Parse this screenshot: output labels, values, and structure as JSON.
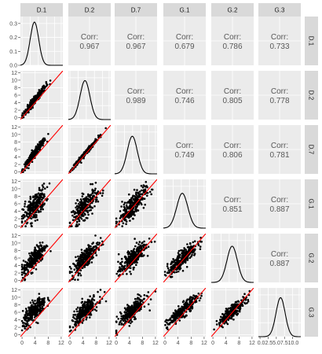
{
  "chart_data": {
    "type": "scatter-matrix",
    "variables": [
      "D.1",
      "D.2",
      "D.7",
      "G.1",
      "G.2",
      "G.3"
    ],
    "corr_label": "Corr:",
    "correlations": [
      {
        "row": "D.1",
        "col": "D.2",
        "value": "0.967"
      },
      {
        "row": "D.1",
        "col": "D.7",
        "value": "0.967"
      },
      {
        "row": "D.1",
        "col": "G.1",
        "value": "0.679"
      },
      {
        "row": "D.1",
        "col": "G.2",
        "value": "0.786"
      },
      {
        "row": "D.1",
        "col": "G.3",
        "value": "0.733"
      },
      {
        "row": "D.2",
        "col": "D.7",
        "value": "0.989"
      },
      {
        "row": "D.2",
        "col": "G.1",
        "value": "0.746"
      },
      {
        "row": "D.2",
        "col": "G.2",
        "value": "0.805"
      },
      {
        "row": "D.2",
        "col": "G.3",
        "value": "0.778"
      },
      {
        "row": "D.7",
        "col": "G.1",
        "value": "0.749"
      },
      {
        "row": "D.7",
        "col": "G.2",
        "value": "0.806"
      },
      {
        "row": "D.7",
        "col": "G.3",
        "value": "0.781"
      },
      {
        "row": "G.1",
        "col": "G.2",
        "value": "0.851"
      },
      {
        "row": "G.1",
        "col": "G.3",
        "value": "0.887"
      },
      {
        "row": "G.2",
        "col": "G.3",
        "value": "0.887"
      }
    ],
    "scatter_x_ticks": [
      "0",
      "4",
      "8",
      "12"
    ],
    "scatter_y_ticks": [
      "0",
      "2",
      "4",
      "6",
      "8",
      "10",
      "12"
    ],
    "scatter_range": [
      -0.5,
      12.5
    ],
    "last_col_x_ticks": [
      "0.02.55.07.510.0"
    ],
    "density_y_ticks": [
      "0.0",
      "0.1",
      "0.2",
      "0.3"
    ],
    "density_y_range": [
      0,
      0.35
    ],
    "densities": [
      {
        "var": "D.1",
        "mean": 3.8,
        "sd": 1.3,
        "peak": 0.31
      },
      {
        "var": "D.2",
        "mean": 4.6,
        "sd": 1.5,
        "peak": 0.28
      },
      {
        "var": "D.7",
        "mean": 4.9,
        "sd": 1.55,
        "peak": 0.27
      },
      {
        "var": "G.1",
        "mean": 5.3,
        "sd": 1.7,
        "peak": 0.25
      },
      {
        "var": "G.2",
        "mean": 5.9,
        "sd": 1.6,
        "peak": 0.26
      },
      {
        "var": "G.3",
        "mean": 6.3,
        "sd": 1.4,
        "peak": 0.28
      }
    ],
    "reference_line": {
      "slope": 1,
      "intercept": 0,
      "color": "#ff0000"
    },
    "colors": {
      "panel_bg": "#ebebeb",
      "grid": "#ffffff",
      "strip_bg": "#d9d9d9",
      "points": "#000000",
      "density": "#000000"
    }
  }
}
